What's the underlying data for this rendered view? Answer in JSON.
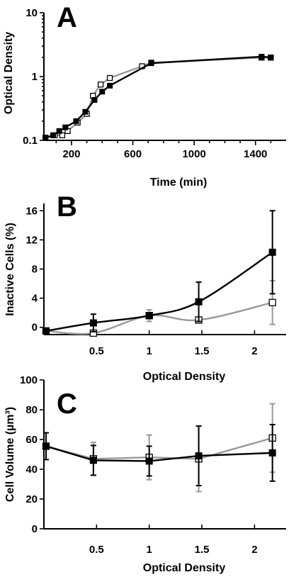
{
  "chart_data": [
    {
      "panel": "A",
      "type": "line",
      "xlabel": "Time (min)",
      "ylabel": "Optical Density",
      "yscale": "log",
      "xlim": [
        20,
        1600
      ],
      "ylim": [
        0.1,
        10
      ],
      "xticks": [
        200,
        600,
        1000,
        1400
      ],
      "yticks": [
        0.1,
        1,
        10
      ],
      "ytick_labels": [
        "0.1",
        "1",
        "10"
      ],
      "grid": false,
      "series": [
        {
          "color": "#000000",
          "marker": "filled-square",
          "x": [
            30,
            80,
            120,
            160,
            230,
            290,
            350,
            400,
            450,
            720,
            1440,
            1500
          ],
          "y": [
            0.11,
            0.12,
            0.14,
            0.16,
            0.2,
            0.28,
            0.43,
            0.58,
            0.72,
            1.62,
            2.05,
            2.0
          ]
        },
        {
          "color": "#999999",
          "marker": "open-square",
          "x": [
            30,
            90,
            140,
            175,
            240,
            300,
            340,
            390,
            450,
            660,
            720,
            1440,
            1500
          ],
          "y": [
            0.11,
            0.12,
            0.12,
            0.14,
            0.19,
            0.26,
            0.5,
            0.75,
            0.95,
            1.45,
            1.65,
            1.98,
            1.98
          ]
        }
      ]
    },
    {
      "panel": "B",
      "type": "line",
      "xlabel": "Optical Density",
      "ylabel": "Inactive Cells (%)",
      "xlim": [
        0,
        2.3
      ],
      "ylim": [
        -1,
        17
      ],
      "xticks": [
        0.5,
        1,
        1.5,
        2
      ],
      "yticks": [
        0,
        4,
        8,
        12,
        16
      ],
      "grid": false,
      "series": [
        {
          "color": "#000000",
          "marker": "filled-square",
          "x": [
            0.02,
            0.47,
            1.0,
            1.47,
            2.17
          ],
          "y": [
            -0.5,
            0.6,
            1.6,
            3.5,
            10.3
          ],
          "err": [
            0,
            1.2,
            0,
            2.7,
            5.7
          ]
        },
        {
          "color": "#999999",
          "marker": "open-square",
          "x": [
            0.02,
            0.47,
            1.0,
            1.47,
            2.17
          ],
          "y": [
            -0.5,
            -0.8,
            1.6,
            1.0,
            3.4
          ],
          "err": [
            0,
            0,
            0.8,
            0,
            3.0
          ]
        }
      ]
    },
    {
      "panel": "C",
      "type": "line",
      "xlabel": "Optical Density",
      "ylabel": "Cell Volume (µm³)",
      "xlim": [
        0,
        2.3
      ],
      "ylim": [
        0,
        100
      ],
      "xticks": [
        0.5,
        1,
        1.5,
        2
      ],
      "yticks": [
        0,
        20,
        40,
        60,
        80,
        100
      ],
      "grid": false,
      "series": [
        {
          "color": "#000000",
          "marker": "filled-square",
          "x": [
            0.02,
            0.47,
            1.0,
            1.47,
            2.17
          ],
          "y": [
            55.5,
            46,
            45.5,
            49,
            51
          ],
          "err": [
            9,
            10,
            10,
            20,
            19
          ]
        },
        {
          "color": "#999999",
          "marker": "open-square",
          "x": [
            0.02,
            0.47,
            1.0,
            1.47,
            2.17
          ],
          "y": [
            55.5,
            47,
            48,
            47,
            61
          ],
          "err": [
            9,
            11,
            15,
            22,
            23
          ]
        }
      ]
    }
  ]
}
